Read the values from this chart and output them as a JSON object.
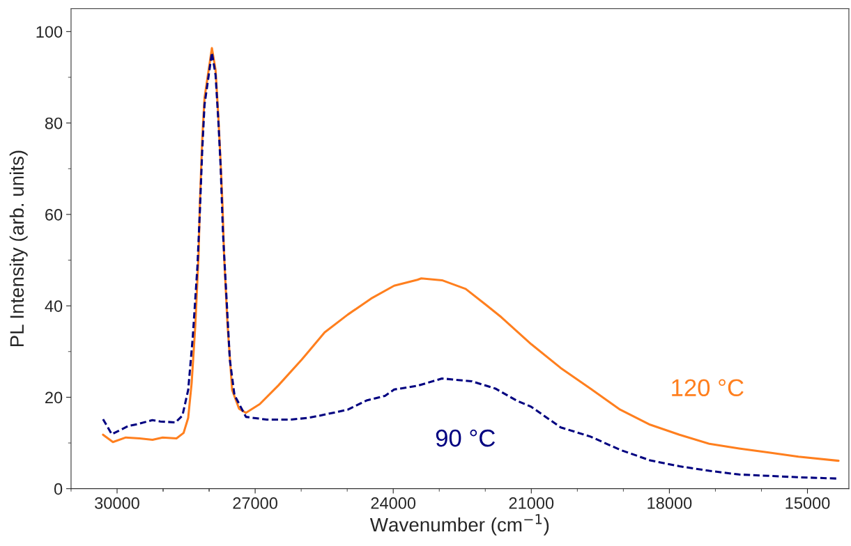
{
  "chart_data": {
    "type": "line",
    "xlabel": "Wavenumber (cm$^{−1}$)",
    "ylabel": "PL Intensity (arb. units)",
    "xlim": [
      31000,
      14100
    ],
    "xticks": [
      30000,
      27000,
      24000,
      21000,
      18000,
      15000
    ],
    "ylim": [
      0,
      105
    ],
    "yticks": [
      0,
      20,
      40,
      60,
      80,
      100
    ],
    "grid": false,
    "legend": false,
    "series": [
      {
        "name": "120 °C",
        "color": "#ff7f1e",
        "line_style": "solid",
        "x": [
          30305,
          30090,
          29810,
          29510,
          29230,
          29010,
          28710,
          28555,
          28455,
          28380,
          28300,
          28230,
          28200,
          28150,
          28100,
          27940,
          27860,
          27800,
          27750,
          27710,
          27675,
          27600,
          27500,
          27350,
          27200,
          26900,
          26495,
          25990,
          25490,
          24985,
          24480,
          23980,
          23475,
          23390,
          22940,
          22425,
          21970,
          21650,
          21000,
          20360,
          19715,
          19070,
          18420,
          17780,
          17130,
          16485,
          15840,
          15195,
          14325
        ],
        "values": [
          11.8,
          10.2,
          11.2,
          11.0,
          10.7,
          11.2,
          11.0,
          12.2,
          15.5,
          23.1,
          35.8,
          51,
          62.7,
          76.4,
          85.5,
          96.4,
          91.6,
          81.4,
          71.3,
          62.2,
          51,
          35.8,
          21.6,
          17.5,
          16.6,
          18.5,
          22.6,
          28.2,
          34.2,
          38.1,
          41.6,
          44.4,
          45.7,
          46.0,
          45.6,
          43.7,
          40.1,
          37.5,
          31.6,
          26.4,
          21.9,
          17.3,
          14.0,
          11.8,
          9.8,
          8.8,
          7.9,
          7.0,
          6.1
        ]
      },
      {
        "name": "90 °C",
        "color": "#000080",
        "line_style": "dashed",
        "x": [
          30305,
          30115,
          29760,
          29560,
          29235,
          29060,
          28730,
          28580,
          28455,
          28355,
          28255,
          28200,
          28150,
          28100,
          27940,
          27860,
          27800,
          27750,
          27700,
          27550,
          27450,
          27200,
          26745,
          26240,
          25840,
          25490,
          24985,
          24580,
          24180,
          23980,
          23475,
          22940,
          22295,
          21780,
          21325,
          21000,
          20360,
          19715,
          19070,
          18420,
          17780,
          17130,
          16485,
          15840,
          15195,
          14325
        ],
        "values": [
          15.2,
          11.9,
          13.7,
          14.1,
          15.0,
          14.7,
          14.5,
          16.0,
          21.6,
          33.2,
          48.5,
          61,
          74,
          84,
          95.4,
          90.5,
          80.5,
          70.5,
          56.1,
          28.2,
          20.5,
          15.7,
          15.1,
          15.1,
          15.5,
          16.2,
          17.3,
          19.3,
          20.3,
          21.7,
          22.5,
          24.1,
          23.5,
          21.9,
          19.3,
          17.9,
          13.4,
          11.4,
          8.5,
          6.2,
          4.9,
          3.9,
          3.1,
          2.8,
          2.5,
          2.2
        ]
      }
    ]
  }
}
